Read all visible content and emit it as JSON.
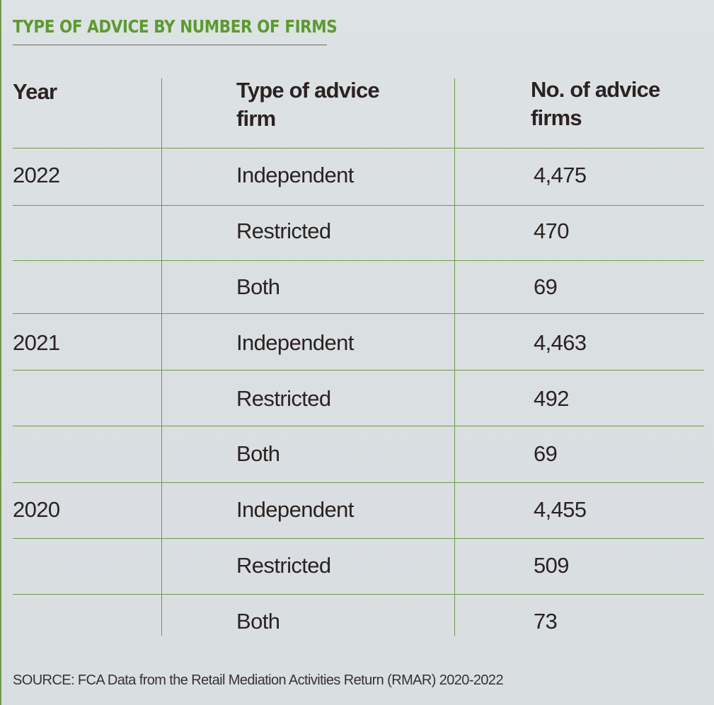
{
  "title": "TYPE OF ADVICE BY NUMBER OF FIRMS",
  "headers": {
    "year": "Year",
    "type_line1": "Type of advice",
    "type_line2": "firm",
    "count_line1": "No. of advice",
    "count_line2": "firms"
  },
  "rows": [
    {
      "year": "2022",
      "type": "Independent",
      "count": "4,475"
    },
    {
      "year": "",
      "type": "Restricted",
      "count": "470"
    },
    {
      "year": "",
      "type": "Both",
      "count": "69"
    },
    {
      "year": "2021",
      "type": "Independent",
      "count": "4,463"
    },
    {
      "year": "",
      "type": "Restricted",
      "count": "492"
    },
    {
      "year": "",
      "type": "Both",
      "count": "69"
    },
    {
      "year": "2020",
      "type": "Independent",
      "count": "4,455"
    },
    {
      "year": "",
      "type": "Restricted",
      "count": "509"
    },
    {
      "year": "",
      "type": "Both",
      "count": "73"
    }
  ],
  "source": "SOURCE: FCA Data from the Retail Mediation Activities Return (RMAR) 2020-2022",
  "colors": {
    "accent": "#5c9a30",
    "rule": "#6e9a4a",
    "text": "#2b2221"
  }
}
